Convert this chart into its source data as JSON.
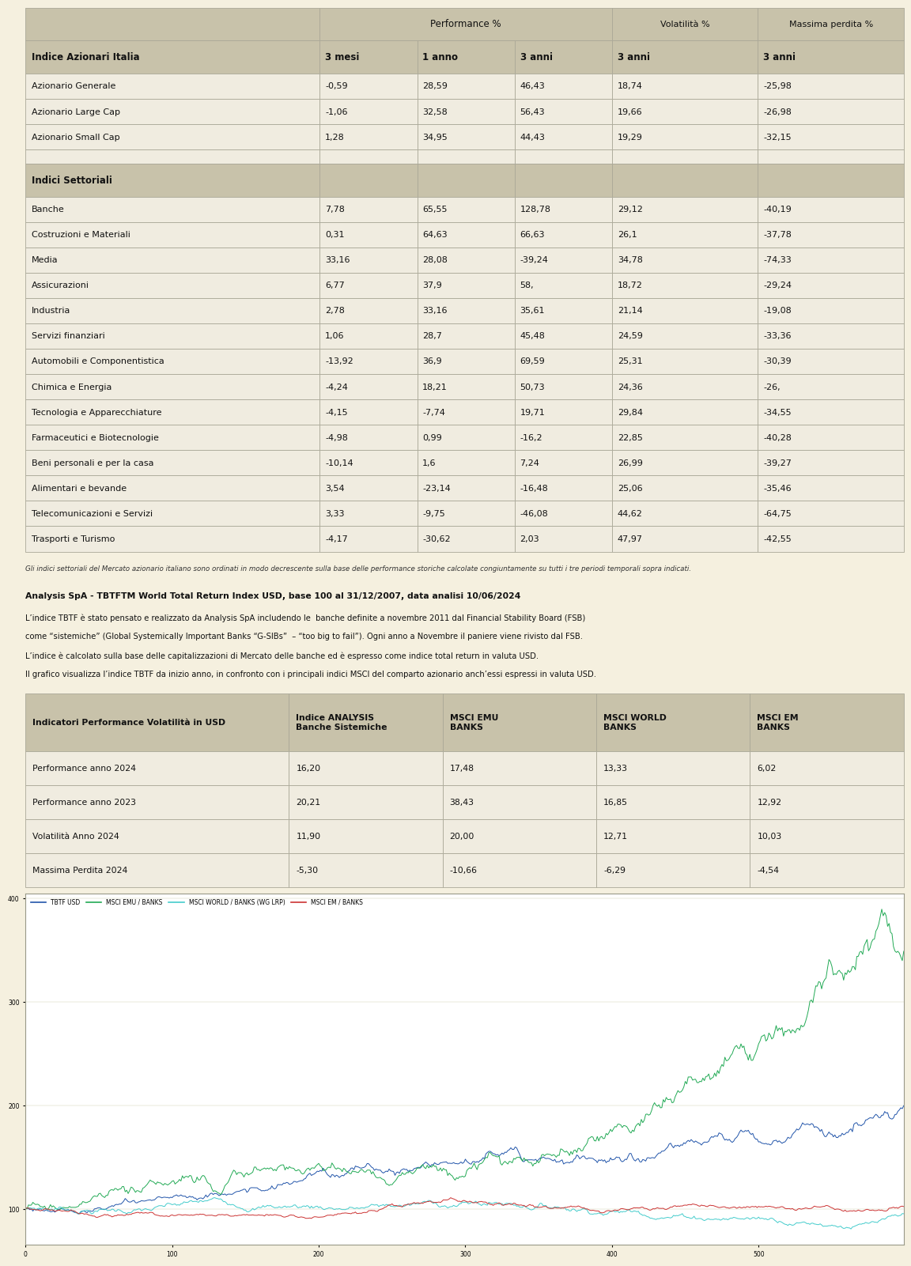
{
  "bg_color": "#f5f0df",
  "table1_header_bg": "#c8c2aa",
  "table1_row_bg": "#f0ece0",
  "table2_header_bg": "#c8c2aa",
  "table2_row_bg": "#f0ece0",
  "table1_section1_rows": [
    [
      "Azionario Generale",
      "-0,59",
      "28,59",
      "46,43",
      "18,74",
      "-25,98"
    ],
    [
      "Azionario Large Cap",
      "-1,06",
      "32,58",
      "56,43",
      "19,66",
      "-26,98"
    ],
    [
      "Azionario Small Cap",
      "1,28",
      "34,95",
      "44,43",
      "19,29",
      "-32,15"
    ]
  ],
  "table1_section2_rows": [
    [
      "Banche",
      "7,78",
      "65,55",
      "128,78",
      "29,12",
      "-40,19"
    ],
    [
      "Costruzioni e Materiali",
      "0,31",
      "64,63",
      "66,63",
      "26,1",
      "-37,78"
    ],
    [
      "Media",
      "33,16",
      "28,08",
      "-39,24",
      "34,78",
      "-74,33"
    ],
    [
      "Assicurazioni",
      "6,77",
      "37,9",
      "58,",
      "18,72",
      "-29,24"
    ],
    [
      "Industria",
      "2,78",
      "33,16",
      "35,61",
      "21,14",
      "-19,08"
    ],
    [
      "Servizi finanziari",
      "1,06",
      "28,7",
      "45,48",
      "24,59",
      "-33,36"
    ],
    [
      "Automobili e Componentistica",
      "-13,92",
      "36,9",
      "69,59",
      "25,31",
      "-30,39"
    ],
    [
      "Chimica e Energia",
      "-4,24",
      "18,21",
      "50,73",
      "24,36",
      "-26,"
    ],
    [
      "Tecnologia e Apparecchiature",
      "-4,15",
      "-7,74",
      "19,71",
      "29,84",
      "-34,55"
    ],
    [
      "Farmaceutici e Biotecnologie",
      "-4,98",
      "0,99",
      "-16,2",
      "22,85",
      "-40,28"
    ],
    [
      "Beni personali e per la casa",
      "-10,14",
      "1,6",
      "7,24",
      "26,99",
      "-39,27"
    ],
    [
      "Alimentari e bevande",
      "3,54",
      "-23,14",
      "-16,48",
      "25,06",
      "-35,46"
    ],
    [
      "Telecomunicazioni e Servizi",
      "3,33",
      "-9,75",
      "-46,08",
      "44,62",
      "-64,75"
    ],
    [
      "Trasporti e Turismo",
      "-4,17",
      "-30,62",
      "2,03",
      "47,97",
      "-42,55"
    ]
  ],
  "footnote1": "Gli indici settoriali del Mercato azionario italiano sono ordinati in modo decrescente sulla base delle performance storiche calcolate congiuntamente su tutti i tre periodi temporali sopra indicati.",
  "analysis_title": "Analysis SpA - TBTFTM World Total Return Index USD, base 100 al 31/12/2007, data analisi 10/06/2024",
  "analysis_text_lines": [
    "L’indice TBTF è stato pensato e realizzato da Analysis SpA includendo le  banche definite a novembre 2011 dal Financial Stability Board (FSB)",
    "come “sistemiche” (Global Systemically Important Banks “G-SIBs”  – “too big to fail”). Ogni anno a Novembre il paniere viene rivisto dal FSB.",
    "L’indice è calcolato sulla base delle capitalizzazioni di Mercato delle banche ed è espresso come indice total return in valuta USD.",
    "Il grafico visualizza l’indice TBTF da inizio anno, in confronto con i principali indici MSCI del comparto azionario anch’essi espressi in valuta USD."
  ],
  "table2_header_cols": [
    "Indicatori Performance Volatilità in USD",
    "Indice ANALYSIS\nBanche Sistemiche",
    "MSCI EMU\nBANKS",
    "MSCI WORLD\nBANKS",
    "MSCI EM\nBANKS"
  ],
  "table2_rows": [
    [
      "Performance anno 2024",
      "16,20",
      "17,48",
      "13,33",
      "6,02"
    ],
    [
      "Performance anno 2023",
      "20,21",
      "38,43",
      "16,85",
      "12,92"
    ],
    [
      "Volatilità Anno 2024",
      "11,90",
      "20,00",
      "12,71",
      "10,03"
    ],
    [
      "Massima Perdita 2024",
      "-5,30",
      "-10,66",
      "-6,29",
      "-4,54"
    ]
  ],
  "chart_line_colors": [
    "#2255aa",
    "#22aa55",
    "#44cccc",
    "#cc3333"
  ],
  "chart_legend": [
    "TBTF USD",
    "MSCI EMU / BANKS",
    "MSCI WORLD / BANKS (WG LRP)",
    "MSCI EM / BANKS"
  ],
  "chart_border_color": "#999988",
  "chart_bg": "#ffffff"
}
